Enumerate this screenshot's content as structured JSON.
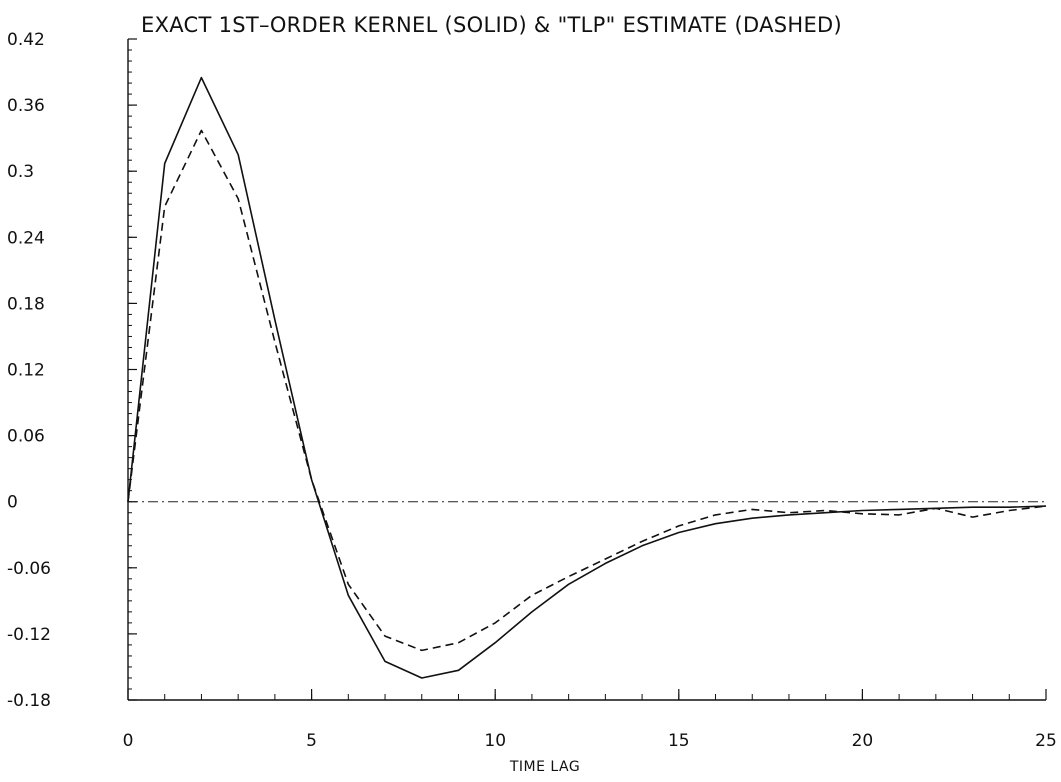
{
  "chart_data": {
    "type": "line",
    "title": "EXACT 1ST–ORDER KERNEL (SOLID) & \"TLP\" ESTIMATE (DASHED)",
    "xlabel": "TIME LAG",
    "ylabel": "",
    "xlim": [
      0,
      25
    ],
    "ylim": [
      -0.18,
      0.42
    ],
    "x_ticks": [
      0,
      5,
      10,
      15,
      20,
      25
    ],
    "x_tick_labels": [
      "0",
      "5",
      "10",
      "15",
      "20",
      "25"
    ],
    "y_ticks": [
      0.42,
      0.36,
      0.3,
      0.24,
      0.18,
      0.12,
      0.06,
      0,
      -0.06,
      -0.12,
      -0.18
    ],
    "y_tick_labels": [
      "0.42",
      "0.36",
      "0.3",
      "0.24",
      "0.18",
      "0.12",
      "0.06",
      "0",
      "-0.06",
      "-0.12",
      "-0.18"
    ],
    "grid": false,
    "reference_line": {
      "y": 0,
      "style": "dash-dot"
    },
    "series": [
      {
        "style": "solid",
        "x": [
          0,
          1,
          2,
          3,
          4,
          5,
          6,
          7,
          8,
          9,
          10,
          11,
          12,
          13,
          14,
          15,
          16,
          17,
          18,
          19,
          20,
          21,
          22,
          23,
          24,
          25
        ],
        "values": [
          0,
          0.307,
          0.385,
          0.315,
          0.165,
          0.02,
          -0.085,
          -0.145,
          -0.16,
          -0.153,
          -0.128,
          -0.1,
          -0.075,
          -0.056,
          -0.04,
          -0.028,
          -0.02,
          -0.015,
          -0.012,
          -0.01,
          -0.008,
          -0.007,
          -0.006,
          -0.005,
          -0.005,
          -0.004
        ]
      },
      {
        "style": "dashed",
        "x": [
          0,
          1,
          2,
          3,
          4,
          5,
          6,
          7,
          8,
          9,
          10,
          11,
          12,
          13,
          14,
          15,
          16,
          17,
          18,
          19,
          20,
          21,
          22,
          23,
          24,
          25
        ],
        "values": [
          0,
          0.268,
          0.337,
          0.275,
          0.145,
          0.02,
          -0.075,
          -0.122,
          -0.135,
          -0.128,
          -0.11,
          -0.085,
          -0.068,
          -0.052,
          -0.036,
          -0.022,
          -0.012,
          -0.007,
          -0.01,
          -0.008,
          -0.011,
          -0.012,
          -0.006,
          -0.014,
          -0.008,
          -0.004
        ]
      }
    ]
  }
}
